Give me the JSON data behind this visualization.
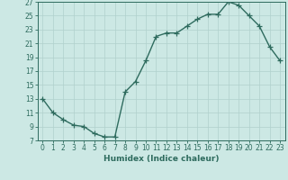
{
  "x": [
    0,
    1,
    2,
    3,
    4,
    5,
    6,
    7,
    8,
    9,
    10,
    11,
    12,
    13,
    14,
    15,
    16,
    17,
    18,
    19,
    20,
    21,
    22,
    23
  ],
  "y": [
    13,
    11,
    10,
    9.2,
    9,
    8,
    7.5,
    7.5,
    14,
    15.5,
    18.5,
    22,
    22.5,
    22.5,
    23.5,
    24.5,
    25.2,
    25.2,
    27,
    26.5,
    25,
    23.5,
    20.5,
    18.5
  ],
  "line_color": "#2e6b5e",
  "bg_color": "#cce8e4",
  "grid_color": "#b0d0cc",
  "xlabel": "Humidex (Indice chaleur)",
  "ylim": [
    7,
    27
  ],
  "xlim": [
    -0.5,
    23.5
  ],
  "yticks": [
    7,
    9,
    11,
    13,
    15,
    17,
    19,
    21,
    23,
    25,
    27
  ],
  "xticks": [
    0,
    1,
    2,
    3,
    4,
    5,
    6,
    7,
    8,
    9,
    10,
    11,
    12,
    13,
    14,
    15,
    16,
    17,
    18,
    19,
    20,
    21,
    22,
    23
  ],
  "marker": "+",
  "markersize": 4,
  "linewidth": 1.0,
  "tick_fontsize": 5.5,
  "xlabel_fontsize": 6.5
}
